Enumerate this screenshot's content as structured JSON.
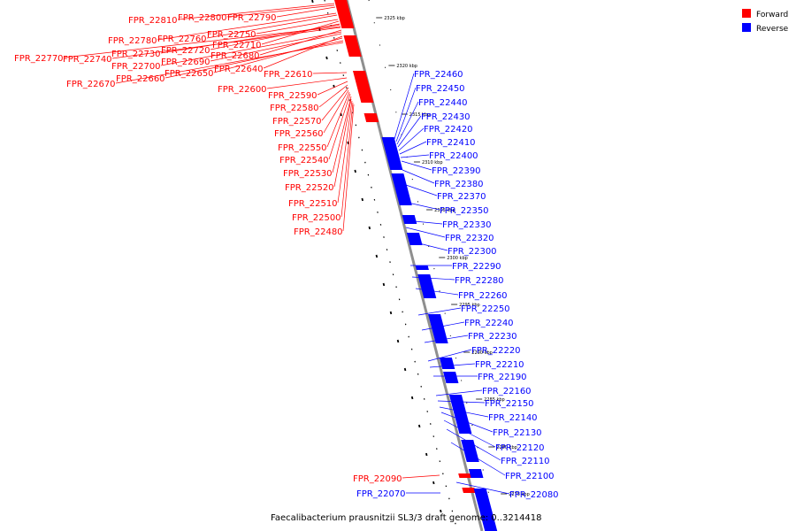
{
  "legend": {
    "forward_label": "Forward",
    "reverse_label": "Reverse",
    "forward_color": "#ff0000",
    "reverse_color": "#0000ff"
  },
  "footer": {
    "caption": "Faecalibacterium prausnitzii SL3/3 draft genome:  0..3214418"
  },
  "ruler": {
    "ticks": [
      "2325 kbp",
      "2320 kbp",
      "2315 kbp",
      "2310 kbp",
      "2305 kbp",
      "2300 kbp",
      "2295 kbp",
      "2290 kbp",
      "2285 kbp",
      "2280 kbp",
      "2275 kbp"
    ]
  },
  "forward_genes": [
    "FPR_22810",
    "FPR_22800",
    "FPR_22790",
    "FPR_22780",
    "FPR_22760",
    "FPR_22750",
    "FPR_22710",
    "FPR_22720",
    "FPR_22730",
    "FPR_22770",
    "FPR_22740",
    "FPR_22680",
    "FPR_22700",
    "FPR_22690",
    "FPR_22640",
    "FPR_22650",
    "FPR_22660",
    "FPR_22670",
    "FPR_22610",
    "FPR_22600",
    "FPR_22590",
    "FPR_22580",
    "FPR_22570",
    "FPR_22560",
    "FPR_22550",
    "FPR_22540",
    "FPR_22530",
    "FPR_22520",
    "FPR_22510",
    "FPR_22500",
    "FPR_22480",
    "FPR_22090"
  ],
  "reverse_genes": [
    "FPR_22460",
    "FPR_22450",
    "FPR_22440",
    "FPR_22430",
    "FPR_22420",
    "FPR_22410",
    "FPR_22400",
    "FPR_22390",
    "FPR_22380",
    "FPR_22370",
    "FPR_22350",
    "FPR_22330",
    "FPR_22320",
    "FPR_22300",
    "FPR_22290",
    "FPR_22280",
    "FPR_22260",
    "FPR_22250",
    "FPR_22240",
    "FPR_22230",
    "FPR_22220",
    "FPR_22210",
    "FPR_22190",
    "FPR_22160",
    "FPR_22150",
    "FPR_22140",
    "FPR_22130",
    "FPR_22120",
    "FPR_22110",
    "FPR_22100",
    "FPR_22080",
    "FPR_22070"
  ]
}
